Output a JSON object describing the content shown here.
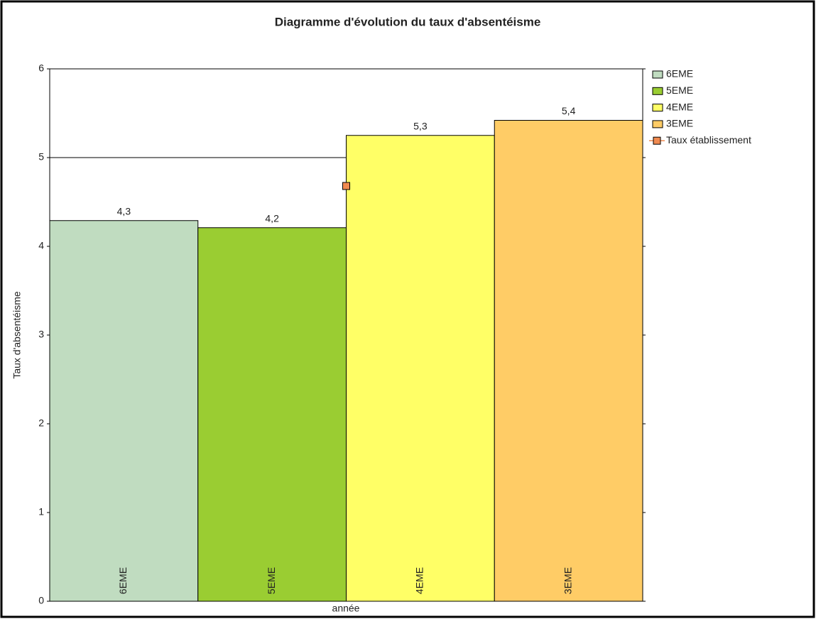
{
  "chart_data": {
    "type": "bar",
    "title": "Diagramme d'évolution du taux d'absentéisme",
    "x_label": "année",
    "y_label": "Taux d'absentéisme",
    "categories": [
      "6EME",
      "5EME",
      "4EME",
      "3EME"
    ],
    "values": [
      4.29,
      4.21,
      5.25,
      5.42
    ],
    "value_labels": [
      "4,3",
      "4,2",
      "5,3",
      "5,4"
    ],
    "colors": [
      "#c0dcc0",
      "#9acd32",
      "#ffff66",
      "#ffcc66"
    ],
    "line": {
      "name": "Taux établissement",
      "value": 4.68,
      "color": "#f08a50"
    },
    "ylim": [
      0,
      6
    ],
    "yticks": [
      0,
      1,
      2,
      3,
      4,
      5,
      6
    ],
    "grid": true
  }
}
